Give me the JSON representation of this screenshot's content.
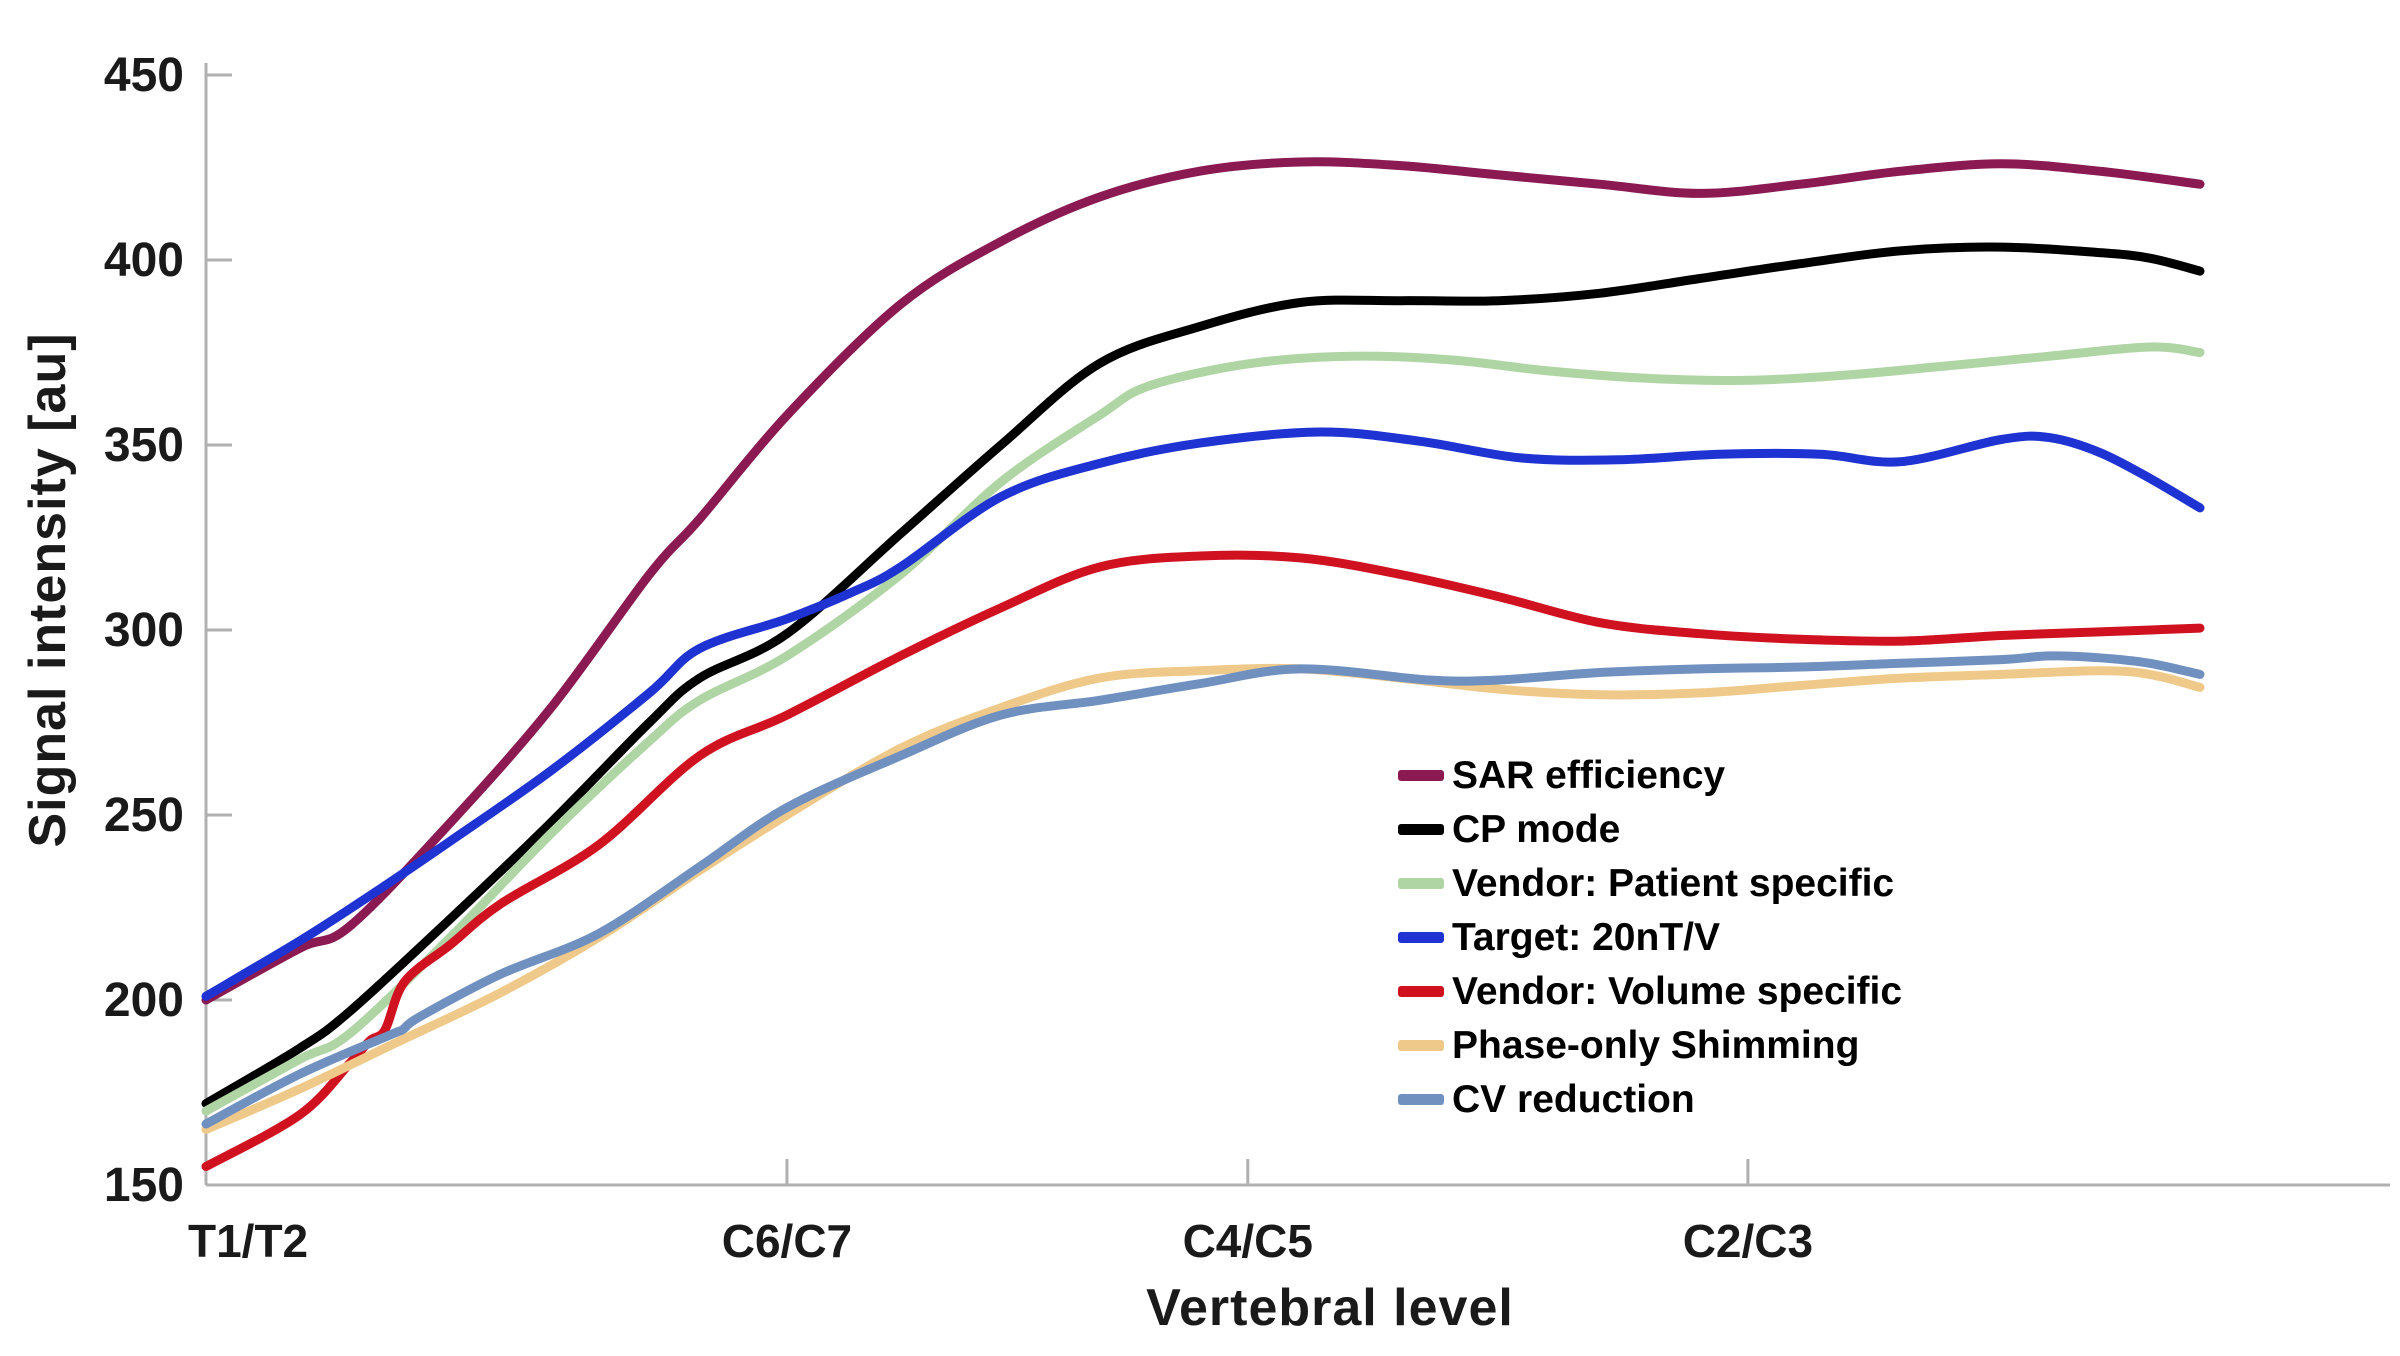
{
  "chart_data": {
    "type": "line",
    "title": "",
    "xlabel": "Vertebral level",
    "ylabel": "Signal intensity [au]",
    "ylim": [
      150,
      450
    ],
    "y_ticks": [
      150,
      200,
      250,
      300,
      350,
      400,
      450
    ],
    "x_ticks": [
      {
        "label": "T1/T2",
        "pos": 0.0
      },
      {
        "label": "C6/C7",
        "pos": 0.266
      },
      {
        "label": "C4/C5",
        "pos": 0.477
      },
      {
        "label": "C2/C3",
        "pos": 0.706
      }
    ],
    "grid": false,
    "legend_position": "inside-right",
    "axis_color": "#b0b0b0",
    "series": [
      {
        "name": "SAR efficiency",
        "color": "#8B1A52",
        "points": [
          [
            0,
            200
          ],
          [
            0.043,
            214
          ],
          [
            0.066,
            220
          ],
          [
            0.112,
            248
          ],
          [
            0.158,
            279
          ],
          [
            0.203,
            315
          ],
          [
            0.226,
            330
          ],
          [
            0.266,
            358
          ],
          [
            0.318,
            388
          ],
          [
            0.364,
            405
          ],
          [
            0.409,
            417
          ],
          [
            0.455,
            424
          ],
          [
            0.501,
            426.5
          ],
          [
            0.547,
            425.5
          ],
          [
            0.592,
            423
          ],
          [
            0.638,
            420.5
          ],
          [
            0.684,
            418
          ],
          [
            0.73,
            420.5
          ],
          [
            0.776,
            424
          ],
          [
            0.822,
            426
          ],
          [
            0.867,
            424
          ],
          [
            0.913,
            420.5
          ]
        ]
      },
      {
        "name": "CP mode",
        "color": "#000000",
        "points": [
          [
            0,
            172
          ],
          [
            0.043,
            187
          ],
          [
            0.066,
            197
          ],
          [
            0.112,
            222
          ],
          [
            0.158,
            248
          ],
          [
            0.203,
            275
          ],
          [
            0.226,
            287
          ],
          [
            0.266,
            299
          ],
          [
            0.318,
            326
          ],
          [
            0.364,
            350
          ],
          [
            0.409,
            372
          ],
          [
            0.455,
            382
          ],
          [
            0.501,
            388.5
          ],
          [
            0.547,
            389
          ],
          [
            0.592,
            389
          ],
          [
            0.638,
            391
          ],
          [
            0.684,
            395
          ],
          [
            0.73,
            399
          ],
          [
            0.776,
            402.5
          ],
          [
            0.822,
            403.5
          ],
          [
            0.867,
            402
          ],
          [
            0.89,
            400.5
          ],
          [
            0.913,
            397
          ]
        ]
      },
      {
        "name": "Vendor: Patient specific",
        "color": "#AFD5A4",
        "points": [
          [
            0,
            170
          ],
          [
            0.043,
            184
          ],
          [
            0.066,
            191
          ],
          [
            0.112,
            217
          ],
          [
            0.158,
            245
          ],
          [
            0.203,
            270
          ],
          [
            0.226,
            281
          ],
          [
            0.266,
            293
          ],
          [
            0.318,
            315
          ],
          [
            0.364,
            340
          ],
          [
            0.409,
            358
          ],
          [
            0.432,
            366
          ],
          [
            0.478,
            372
          ],
          [
            0.524,
            374
          ],
          [
            0.57,
            373
          ],
          [
            0.615,
            370
          ],
          [
            0.661,
            368
          ],
          [
            0.707,
            367.5
          ],
          [
            0.753,
            369
          ],
          [
            0.799,
            371.5
          ],
          [
            0.844,
            374
          ],
          [
            0.89,
            376.5
          ],
          [
            0.913,
            375
          ]
        ]
      },
      {
        "name": "Target: 20nT/V",
        "color": "#1E33D1",
        "points": [
          [
            0,
            201
          ],
          [
            0.043,
            216
          ],
          [
            0.072,
            227
          ],
          [
            0.112,
            243
          ],
          [
            0.158,
            262
          ],
          [
            0.203,
            283
          ],
          [
            0.226,
            295
          ],
          [
            0.266,
            303
          ],
          [
            0.295,
            310
          ],
          [
            0.318,
            317
          ],
          [
            0.364,
            336
          ],
          [
            0.409,
            345
          ],
          [
            0.455,
            350.5
          ],
          [
            0.51,
            353.5
          ],
          [
            0.556,
            351
          ],
          [
            0.602,
            346.5
          ],
          [
            0.647,
            346
          ],
          [
            0.693,
            347.5
          ],
          [
            0.739,
            347.5
          ],
          [
            0.776,
            345.5
          ],
          [
            0.822,
            351.5
          ],
          [
            0.844,
            352
          ],
          [
            0.867,
            348
          ],
          [
            0.89,
            341
          ],
          [
            0.913,
            333
          ]
        ]
      },
      {
        "name": "Vendor: Volume specific",
        "color": "#D01220",
        "points": [
          [
            0,
            155
          ],
          [
            0.043,
            169
          ],
          [
            0.066,
            183
          ],
          [
            0.075,
            189
          ],
          [
            0.082,
            192
          ],
          [
            0.091,
            205
          ],
          [
            0.112,
            215
          ],
          [
            0.135,
            226
          ],
          [
            0.18,
            242
          ],
          [
            0.226,
            266
          ],
          [
            0.266,
            277
          ],
          [
            0.318,
            293
          ],
          [
            0.364,
            306
          ],
          [
            0.409,
            317
          ],
          [
            0.455,
            320
          ],
          [
            0.501,
            319.5
          ],
          [
            0.547,
            315
          ],
          [
            0.592,
            309
          ],
          [
            0.638,
            302
          ],
          [
            0.684,
            299
          ],
          [
            0.73,
            297.5
          ],
          [
            0.776,
            297
          ],
          [
            0.822,
            298.5
          ],
          [
            0.867,
            299.5
          ],
          [
            0.913,
            300.5
          ]
        ]
      },
      {
        "name": "Phase-only Shimming",
        "color": "#EFC98A",
        "points": [
          [
            0,
            165
          ],
          [
            0.043,
            176
          ],
          [
            0.089,
            189
          ],
          [
            0.135,
            202
          ],
          [
            0.18,
            217
          ],
          [
            0.226,
            235
          ],
          [
            0.266,
            250
          ],
          [
            0.318,
            268
          ],
          [
            0.364,
            279
          ],
          [
            0.409,
            287
          ],
          [
            0.455,
            289
          ],
          [
            0.501,
            289.5
          ],
          [
            0.547,
            287
          ],
          [
            0.592,
            284
          ],
          [
            0.638,
            282.5
          ],
          [
            0.684,
            283
          ],
          [
            0.73,
            285
          ],
          [
            0.776,
            287
          ],
          [
            0.822,
            288
          ],
          [
            0.867,
            289
          ],
          [
            0.89,
            288
          ],
          [
            0.913,
            284.5
          ]
        ]
      },
      {
        "name": "CV reduction",
        "color": "#7090C0",
        "points": [
          [
            0,
            166.5
          ],
          [
            0.043,
            180
          ],
          [
            0.084,
            190.5
          ],
          [
            0.09,
            192
          ],
          [
            0.098,
            195.5
          ],
          [
            0.135,
            207
          ],
          [
            0.18,
            218
          ],
          [
            0.226,
            236
          ],
          [
            0.266,
            252
          ],
          [
            0.318,
            266
          ],
          [
            0.364,
            277
          ],
          [
            0.409,
            281
          ],
          [
            0.455,
            285.5
          ],
          [
            0.501,
            289.5
          ],
          [
            0.56,
            286.5
          ],
          [
            0.592,
            286.5
          ],
          [
            0.638,
            288.5
          ],
          [
            0.684,
            289.5
          ],
          [
            0.73,
            290
          ],
          [
            0.776,
            291
          ],
          [
            0.822,
            292
          ],
          [
            0.844,
            293
          ],
          [
            0.867,
            292.5
          ],
          [
            0.89,
            291
          ],
          [
            0.913,
            288
          ]
        ]
      }
    ]
  }
}
